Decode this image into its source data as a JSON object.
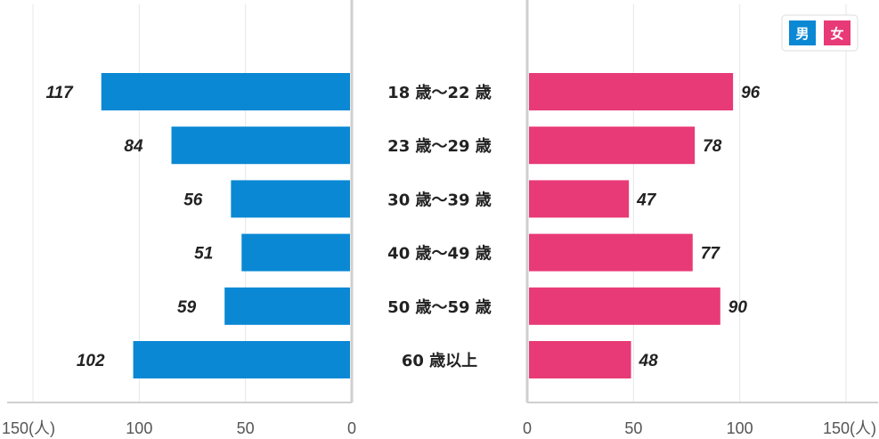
{
  "chart_data": {
    "type": "bar",
    "orientation": "horizontal-butterfly",
    "categories": [
      "18 歳〜22 歳",
      "23 歳〜29 歳",
      "30 歳〜39 歳",
      "40 歳〜49 歳",
      "50 歳〜59 歳",
      "60 歳以上"
    ],
    "series": [
      {
        "name": "男",
        "color": "#0a88d4",
        "values": [
          117,
          84,
          56,
          51,
          59,
          102
        ]
      },
      {
        "name": "女",
        "color": "#e83a76",
        "values": [
          96,
          78,
          47,
          77,
          90,
          48
        ]
      }
    ],
    "value_labels": {
      "male": [
        "117",
        "84",
        "56",
        "51",
        "59",
        "102"
      ],
      "female": [
        "96",
        "78",
        "47",
        "77",
        "90",
        "48"
      ]
    },
    "axis": {
      "unit": "(人)",
      "left_ticks": [
        "150",
        "100",
        "50",
        "0"
      ],
      "right_ticks": [
        "0",
        "50",
        "100",
        "150"
      ],
      "range": [
        0,
        150
      ]
    },
    "legend": {
      "placement": "top-right",
      "entries": [
        "男",
        "女"
      ]
    },
    "grid": true,
    "title": "",
    "xlabel": "",
    "ylabel": ""
  },
  "colors": {
    "male": "#0a88d4",
    "female": "#e83a76",
    "grid": "#e6e6e6",
    "axis": "#cfcfcf"
  }
}
